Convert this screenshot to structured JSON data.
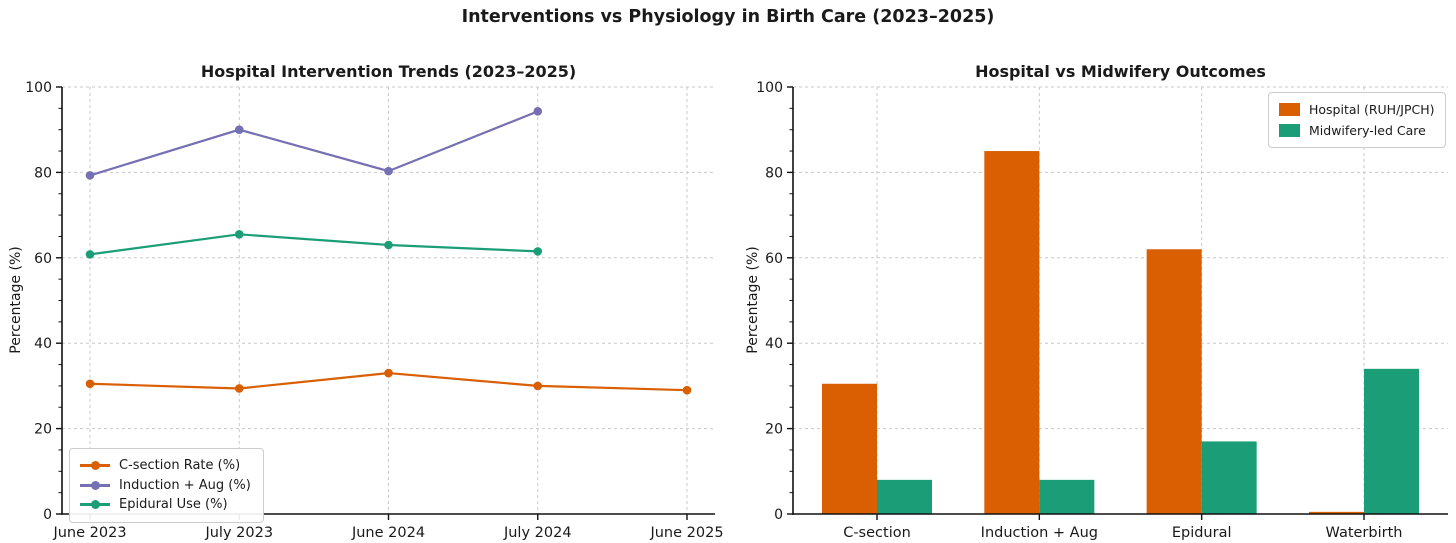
{
  "figure": {
    "title": "Interventions vs Physiology in Birth Care (2023–2025)"
  },
  "colors": {
    "orange": "#d95f02",
    "purple": "#7570b3",
    "green": "#1b9e77",
    "grid": "#c9c9c9",
    "axis": "#111111",
    "text": "#1a1a1a"
  },
  "chart_data": [
    {
      "type": "line",
      "title": "Hospital Intervention Trends (2023–2025)",
      "ylabel": "Percentage (%)",
      "ylim": [
        0,
        100
      ],
      "yticks": [
        0,
        20,
        40,
        60,
        80,
        100
      ],
      "grid": "dashed-both-axes",
      "legend_position": "lower-left",
      "x": [
        "June 2023",
        "July 2023",
        "June 2024",
        "July 2024",
        "June 2025"
      ],
      "series": [
        {
          "name": "C-section Rate (%)",
          "color": "#d95f02",
          "values": [
            30.5,
            29.4,
            33,
            30,
            29
          ]
        },
        {
          "name": "Induction + Aug (%)",
          "color": "#7570b3",
          "values": [
            79.3,
            90,
            80.3,
            94.3,
            null
          ]
        },
        {
          "name": "Epidural Use (%)",
          "color": "#1b9e77",
          "values": [
            60.8,
            65.5,
            63,
            61.5,
            null
          ]
        }
      ]
    },
    {
      "type": "bar",
      "title": "Hospital vs Midwifery Outcomes",
      "ylabel": "Percentage (%)",
      "ylim": [
        0,
        100
      ],
      "yticks": [
        0,
        20,
        40,
        60,
        80,
        100
      ],
      "grid": "dashed-both-axes",
      "legend_position": "upper-right",
      "categories": [
        "C-section",
        "Induction + Aug",
        "Epidural",
        "Waterbirth"
      ],
      "series": [
        {
          "name": "Hospital (RUH/JPCH)",
          "color": "#d95f02",
          "values": [
            30.5,
            85,
            62,
            0.5
          ]
        },
        {
          "name": "Midwifery-led Care",
          "color": "#1b9e77",
          "values": [
            8,
            8,
            17,
            34
          ]
        }
      ]
    }
  ]
}
